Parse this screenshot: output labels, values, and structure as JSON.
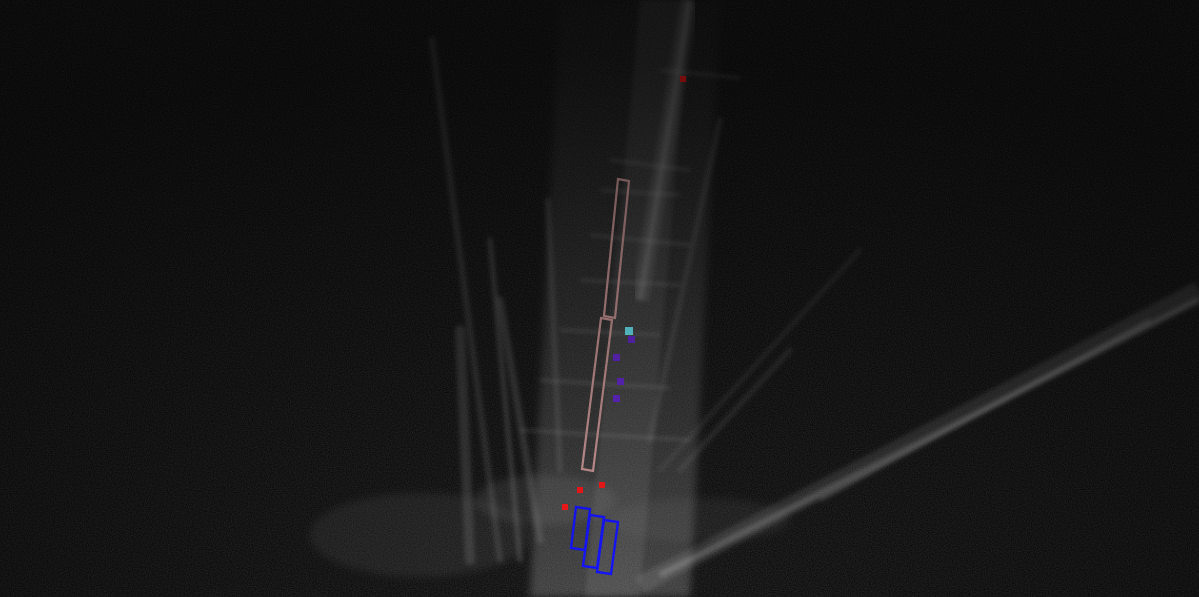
{
  "colors": {
    "background": "#0b0b0b",
    "return_faint": "#6f6f6f",
    "return_mid": "#9a9a9a",
    "return_bright": "#d6d6d6",
    "box_pink": "#d9a0a0",
    "box_blue": "#1515ff",
    "point_red": "#ff1a1a",
    "point_purple": "#6a2bd6",
    "point_cyan": "#6ff3ff"
  },
  "legend": []
}
